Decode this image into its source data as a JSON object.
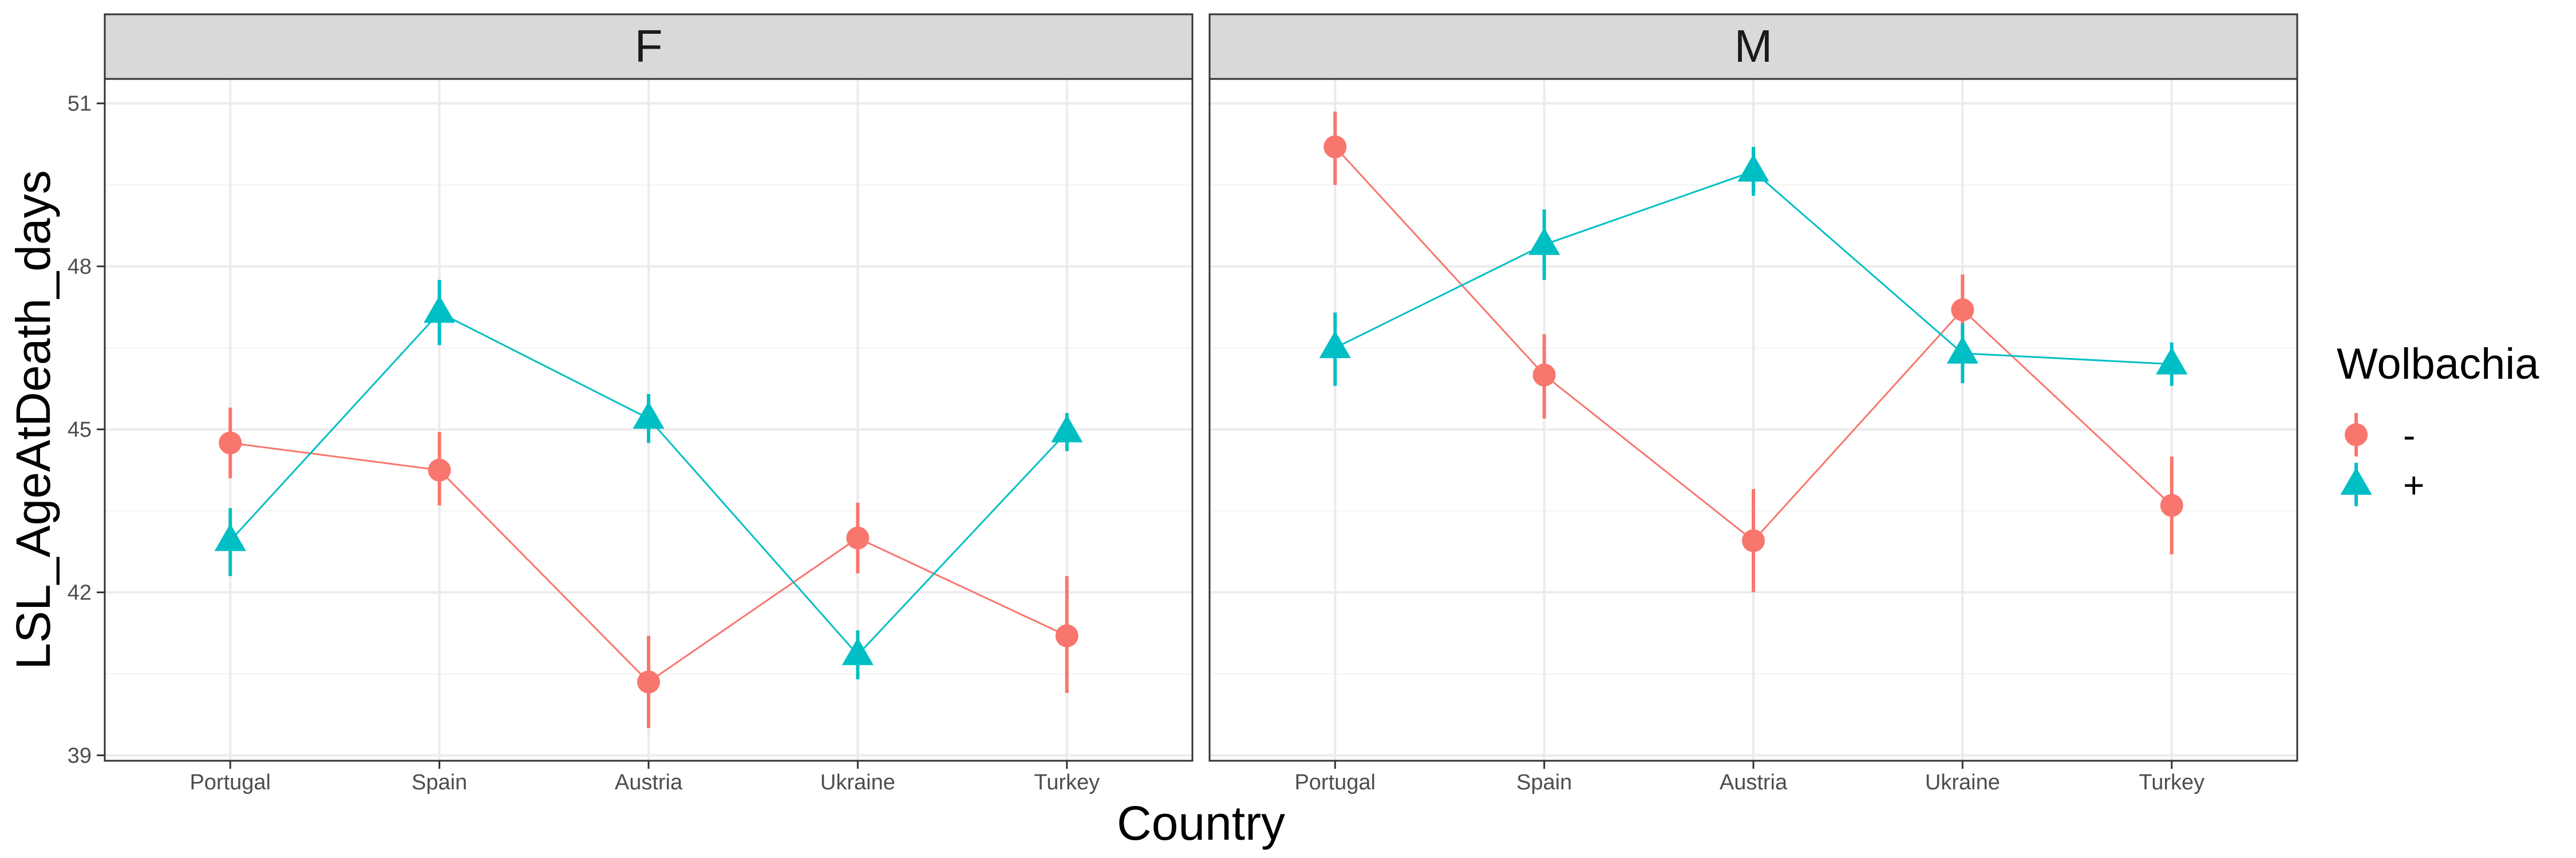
{
  "chart_data": {
    "type": "scatter",
    "xlabel": "Country",
    "ylabel": "LSL_AgeAtDeath_days",
    "categories": [
      "Portugal",
      "Spain",
      "Austria",
      "Ukraine",
      "Turkey"
    ],
    "ylim": [
      38.9,
      51.45
    ],
    "yticks": [
      39,
      42,
      45,
      48,
      51
    ],
    "grid": true,
    "legend": {
      "title": "Wolbachia",
      "position": "right",
      "entries": [
        {
          "label": "-",
          "color": "#F8766D",
          "shape": "circle"
        },
        {
          "label": "+",
          "color": "#00BFC4",
          "shape": "triangle"
        }
      ]
    },
    "panels": [
      {
        "label": "F",
        "series": [
          {
            "name": "-",
            "color": "#F8766D",
            "shape": "circle",
            "values": [
              44.75,
              44.25,
              40.35,
              43.0,
              41.2
            ],
            "lower": [
              44.1,
              43.6,
              39.5,
              42.35,
              40.15
            ],
            "upper": [
              45.4,
              44.95,
              41.2,
              43.65,
              42.3
            ]
          },
          {
            "name": "+",
            "color": "#00BFC4",
            "shape": "triangle",
            "values": [
              42.95,
              47.15,
              45.2,
              40.85,
              44.95
            ],
            "lower": [
              42.3,
              46.55,
              44.75,
              40.4,
              44.6
            ],
            "upper": [
              43.55,
              47.75,
              45.65,
              41.3,
              45.3
            ]
          }
        ]
      },
      {
        "label": "M",
        "series": [
          {
            "name": "-",
            "color": "#F8766D",
            "shape": "circle",
            "values": [
              50.2,
              46.0,
              42.95,
              47.2,
              43.6
            ],
            "lower": [
              49.5,
              45.2,
              42.0,
              46.5,
              42.7
            ],
            "upper": [
              50.85,
              46.75,
              43.9,
              47.85,
              44.5
            ]
          },
          {
            "name": "+",
            "color": "#00BFC4",
            "shape": "triangle",
            "values": [
              46.5,
              48.4,
              49.75,
              46.4,
              46.2
            ],
            "lower": [
              45.8,
              47.75,
              49.3,
              45.85,
              45.8
            ],
            "upper": [
              47.15,
              49.05,
              50.2,
              46.95,
              46.6
            ]
          }
        ]
      }
    ]
  }
}
